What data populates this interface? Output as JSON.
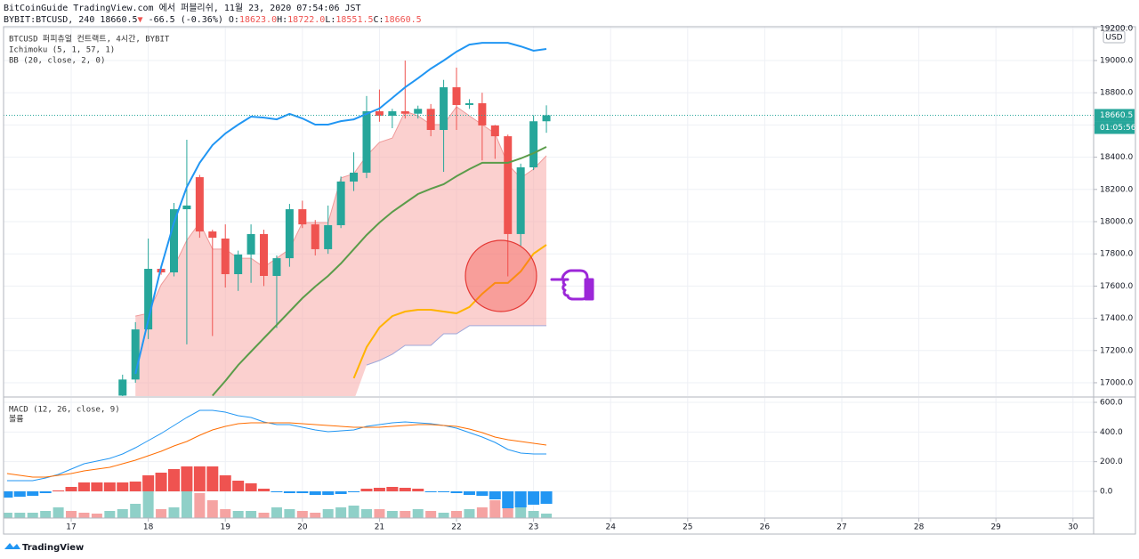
{
  "header": {
    "line1": "BitCoinGuide TradingView.com 에서 퍼블리쉬, 11월 23, 2020 07:54:06 JST",
    "symbol": "BYBIT:BTCUSD, 240 18660.5",
    "arrow": "▼",
    "change": "-66.5 (-0.36%)",
    "quote": [
      {
        "k": "O:",
        "v": "18623.0"
      },
      {
        "k": "H:",
        "v": "18722.0"
      },
      {
        "k": "L:",
        "v": "18551.5"
      },
      {
        "k": "C:",
        "v": "18660.5"
      }
    ]
  },
  "legend": [
    "BTCUSD 퍼피츄얼 컨트랙트, 4시간, BYBIT",
    "Ichimoku (5, 1, 57, 1)",
    "BB (20, close, 2, 0)"
  ],
  "currency": "USD",
  "countdown": "01:05:56",
  "brand": "TradingView",
  "chart_data": [
    {
      "type": "candlestick",
      "x": [
        17.6667,
        17.8333,
        18,
        18.1667,
        18.3333,
        18.5,
        18.6667,
        18.8333,
        19,
        19.1667,
        19.3333,
        19.5,
        19.6667,
        19.8333,
        20,
        20.1667,
        20.3333,
        20.5,
        20.6667,
        20.8333,
        21,
        21.1667,
        21.3333,
        21.5,
        21.6667,
        21.8333,
        22,
        22.1667,
        22.3333,
        22.5,
        22.6667,
        22.8333,
        23,
        23.1667
      ],
      "open": [
        16920,
        17020,
        17331,
        17707,
        17685,
        18077,
        18276,
        17939,
        17895,
        17674,
        17796,
        17923,
        17663,
        17773,
        18077,
        17983,
        17829,
        17978,
        18249,
        18304,
        18685,
        18657,
        18685,
        18670,
        18700,
        18569,
        18834,
        18724,
        18735,
        18597,
        18530,
        17923,
        18337,
        18623
      ],
      "high": [
        17050,
        17376,
        17895,
        17720,
        18116,
        18508,
        18290,
        17950,
        17983,
        17820,
        17983,
        17950,
        17790,
        18110,
        18130,
        18010,
        18100,
        18280,
        18430,
        18780,
        18820,
        18700,
        19000,
        18720,
        18730,
        18880,
        18956,
        18760,
        18800,
        18600,
        18540,
        18360,
        18660,
        18722
      ],
      "low": [
        16900,
        17000,
        17271,
        17670,
        17660,
        17238,
        17900,
        17290,
        17591,
        17570,
        17620,
        17600,
        17340,
        17720,
        17960,
        17790,
        17800,
        17960,
        18190,
        18270,
        18620,
        18580,
        18640,
        18640,
        18530,
        18309,
        18569,
        18700,
        18380,
        18390,
        17660,
        17850,
        18320,
        18551.5
      ],
      "close": [
        17020,
        17331,
        17707,
        17685,
        18077,
        18100,
        17939,
        17900,
        17674,
        17796,
        17923,
        17663,
        17773,
        18077,
        17983,
        17829,
        17978,
        18249,
        18304,
        18685,
        18657,
        18685,
        18670,
        18700,
        18569,
        18834,
        18724,
        18735,
        18597,
        18530,
        17923,
        18337,
        18623,
        18660.5
      ],
      "up_color": "#26a69a",
      "down_color": "#ef5350",
      "cloud": {
        "color": "#f7a9a8",
        "upper_color": "#ef9a9a",
        "lower_color": "#9fa8da",
        "upper": [
          null,
          17414,
          17431,
          17608,
          17718,
          17884,
          17994,
          17829,
          17829,
          17773,
          17773,
          17718,
          17773,
          17829,
          17994,
          17994,
          17994,
          18271,
          18298,
          18409,
          18492,
          18519,
          18685,
          18657,
          18602,
          18602,
          18713,
          18657,
          18602,
          18547,
          18354,
          18271,
          18326,
          18409
        ],
        "lower": [
          null,
          null,
          null,
          null,
          null,
          null,
          null,
          null,
          null,
          null,
          null,
          null,
          null,
          null,
          null,
          null,
          null,
          null,
          null,
          17110,
          17138,
          17177,
          17232,
          17232,
          17232,
          17304,
          17304,
          17354,
          17354,
          17354,
          17354,
          17354,
          17354,
          17354
        ]
      },
      "series": [
        {
          "color": "#2196f3",
          "values": [
            null,
            17055,
            17387,
            17718,
            17994,
            18215,
            18365,
            18475,
            18547,
            18602,
            18652,
            18646,
            18635,
            18669,
            18641,
            18602,
            18602,
            18624,
            18635,
            18669,
            18702,
            18768,
            18834,
            18890,
            18950,
            19000,
            19055,
            19099,
            19110,
            19110,
            19110,
            19088,
            19061,
            19072
          ]
        },
        {
          "color": "#5b9c4a",
          "values": [
            null,
            null,
            null,
            null,
            null,
            null,
            null,
            16920,
            17011,
            17110,
            17193,
            17276,
            17359,
            17442,
            17525,
            17597,
            17663,
            17740,
            17829,
            17917,
            17994,
            18061,
            18116,
            18171,
            18204,
            18232,
            18282,
            18326,
            18365,
            18365,
            18365,
            18392,
            18425,
            18464
          ]
        },
        {
          "color": "#ffb300",
          "values": [
            null,
            null,
            null,
            null,
            null,
            null,
            null,
            null,
            null,
            null,
            null,
            null,
            null,
            null,
            null,
            null,
            null,
            null,
            17028,
            17221,
            17343,
            17414,
            17442,
            17453,
            17453,
            17442,
            17431,
            17470,
            17552,
            17619,
            17619,
            17691,
            17801,
            17856
          ]
        }
      ],
      "last_price": 18660.5,
      "xlim": [
        16.122,
        30.268
      ],
      "xticks": [
        17,
        18,
        19,
        20,
        21,
        22,
        23,
        24,
        25,
        26,
        27,
        28,
        29,
        30
      ],
      "ylim": [
        16917,
        19210
      ],
      "yticks": [
        {
          "value": 17000,
          "label": "17000.0"
        },
        {
          "value": 17200,
          "label": "17200.0"
        },
        {
          "value": 17400,
          "label": "17400.0"
        },
        {
          "value": 17600,
          "label": "17600.0"
        },
        {
          "value": 17800,
          "label": "17800.0"
        },
        {
          "value": 18000,
          "label": "18000.0"
        },
        {
          "value": 18200,
          "label": "18200.0"
        },
        {
          "value": 18400,
          "label": "18400.0"
        },
        {
          "value": 18600,
          "label": "18600.0"
        },
        {
          "value": 18800,
          "label": "18800.0"
        },
        {
          "value": 19000,
          "label": "19000.0"
        },
        {
          "value": 19200,
          "label": "19200.0"
        }
      ],
      "grid": true
    },
    {
      "type": "macd",
      "title": "MACD (12, 26, close, 9)",
      "x": [
        16.1667,
        16.3333,
        16.5,
        16.6667,
        16.8333,
        17,
        17.1667,
        17.3333,
        17.5,
        17.6667,
        17.8333,
        18,
        18.1667,
        18.3333,
        18.5,
        18.6667,
        18.8333,
        19,
        19.1667,
        19.3333,
        19.5,
        19.6667,
        19.8333,
        20,
        20.1667,
        20.3333,
        20.5,
        20.6667,
        20.8333,
        21,
        21.1667,
        21.3333,
        21.5,
        21.6667,
        21.8333,
        22,
        22.1667,
        22.3333,
        22.5,
        22.6667,
        22.8333,
        23,
        23.1667
      ],
      "histogram": [
        -42,
        -36,
        -30,
        -12,
        6,
        30,
        60,
        60,
        60,
        60,
        66,
        108,
        126,
        150,
        168,
        168,
        168,
        108,
        72,
        54,
        18,
        -6,
        -12,
        -12,
        -24,
        -24,
        -18,
        -6,
        18,
        24,
        30,
        24,
        18,
        -6,
        -6,
        -12,
        -24,
        -30,
        -54,
        -114,
        -108,
        -90,
        -84
      ],
      "up_color": "#ef5350",
      "down_color": "#2196f3",
      "series": [
        {
          "color": "#2196f3",
          "values": [
            72,
            72,
            72,
            90,
            114,
            150,
            186,
            204,
            222,
            252,
            294,
            342,
            390,
            444,
            498,
            546,
            546,
            534,
            510,
            498,
            468,
            450,
            450,
            432,
            414,
            402,
            408,
            414,
            438,
            450,
            462,
            468,
            462,
            456,
            444,
            426,
            396,
            366,
            330,
            282,
            258,
            252,
            252
          ]
        },
        {
          "color": "#ff6d00",
          "values": [
            120,
            108,
            96,
            96,
            108,
            120,
            138,
            150,
            162,
            186,
            210,
            240,
            270,
            306,
            336,
            378,
            414,
            438,
            456,
            462,
            462,
            462,
            462,
            456,
            450,
            444,
            438,
            432,
            432,
            432,
            438,
            444,
            450,
            450,
            444,
            438,
            420,
            396,
            366,
            348,
            336,
            324,
            312
          ]
        }
      ],
      "volume": {
        "label": "볼륨",
        "ylim": [
          0,
          40
        ],
        "values": [
          6,
          6,
          6,
          8,
          12,
          8,
          6,
          5,
          8,
          10,
          16,
          37,
          10,
          12,
          32,
          28,
          20,
          10,
          8,
          8,
          6,
          12,
          10,
          8,
          6,
          10,
          12,
          14,
          10,
          10,
          8,
          8,
          10,
          8,
          6,
          8,
          10,
          12,
          20,
          14,
          12,
          8,
          5
        ],
        "colors": [
          "#8fd0c8",
          "#8fd0c8",
          "#8fd0c8",
          "#8fd0c8",
          "#8fd0c8",
          "#f5a3a2",
          "#f5a3a2",
          "#f5a3a2",
          "#8fd0c8",
          "#8fd0c8",
          "#8fd0c8",
          "#8fd0c8",
          "#f5a3a2",
          "#8fd0c8",
          "#8fd0c8",
          "#f5a3a2",
          "#f5a3a2",
          "#f5a3a2",
          "#8fd0c8",
          "#8fd0c8",
          "#f5a3a2",
          "#8fd0c8",
          "#8fd0c8",
          "#f5a3a2",
          "#f5a3a2",
          "#8fd0c8",
          "#8fd0c8",
          "#8fd0c8",
          "#8fd0c8",
          "#f5a3a2",
          "#8fd0c8",
          "#f5a3a2",
          "#8fd0c8",
          "#f5a3a2",
          "#8fd0c8",
          "#f5a3a2",
          "#8fd0c8",
          "#f5a3a2",
          "#f5a3a2",
          "#f5a3a2",
          "#8fd0c8",
          "#8fd0c8",
          "#8fd0c8"
        ]
      },
      "ylim": [
        -180,
        630
      ],
      "yticks": [
        {
          "value": 0,
          "label": "0.0"
        },
        {
          "value": 200,
          "label": "200.0"
        },
        {
          "value": 400,
          "label": "400.0"
        },
        {
          "value": 600,
          "label": "600.0"
        }
      ]
    }
  ]
}
